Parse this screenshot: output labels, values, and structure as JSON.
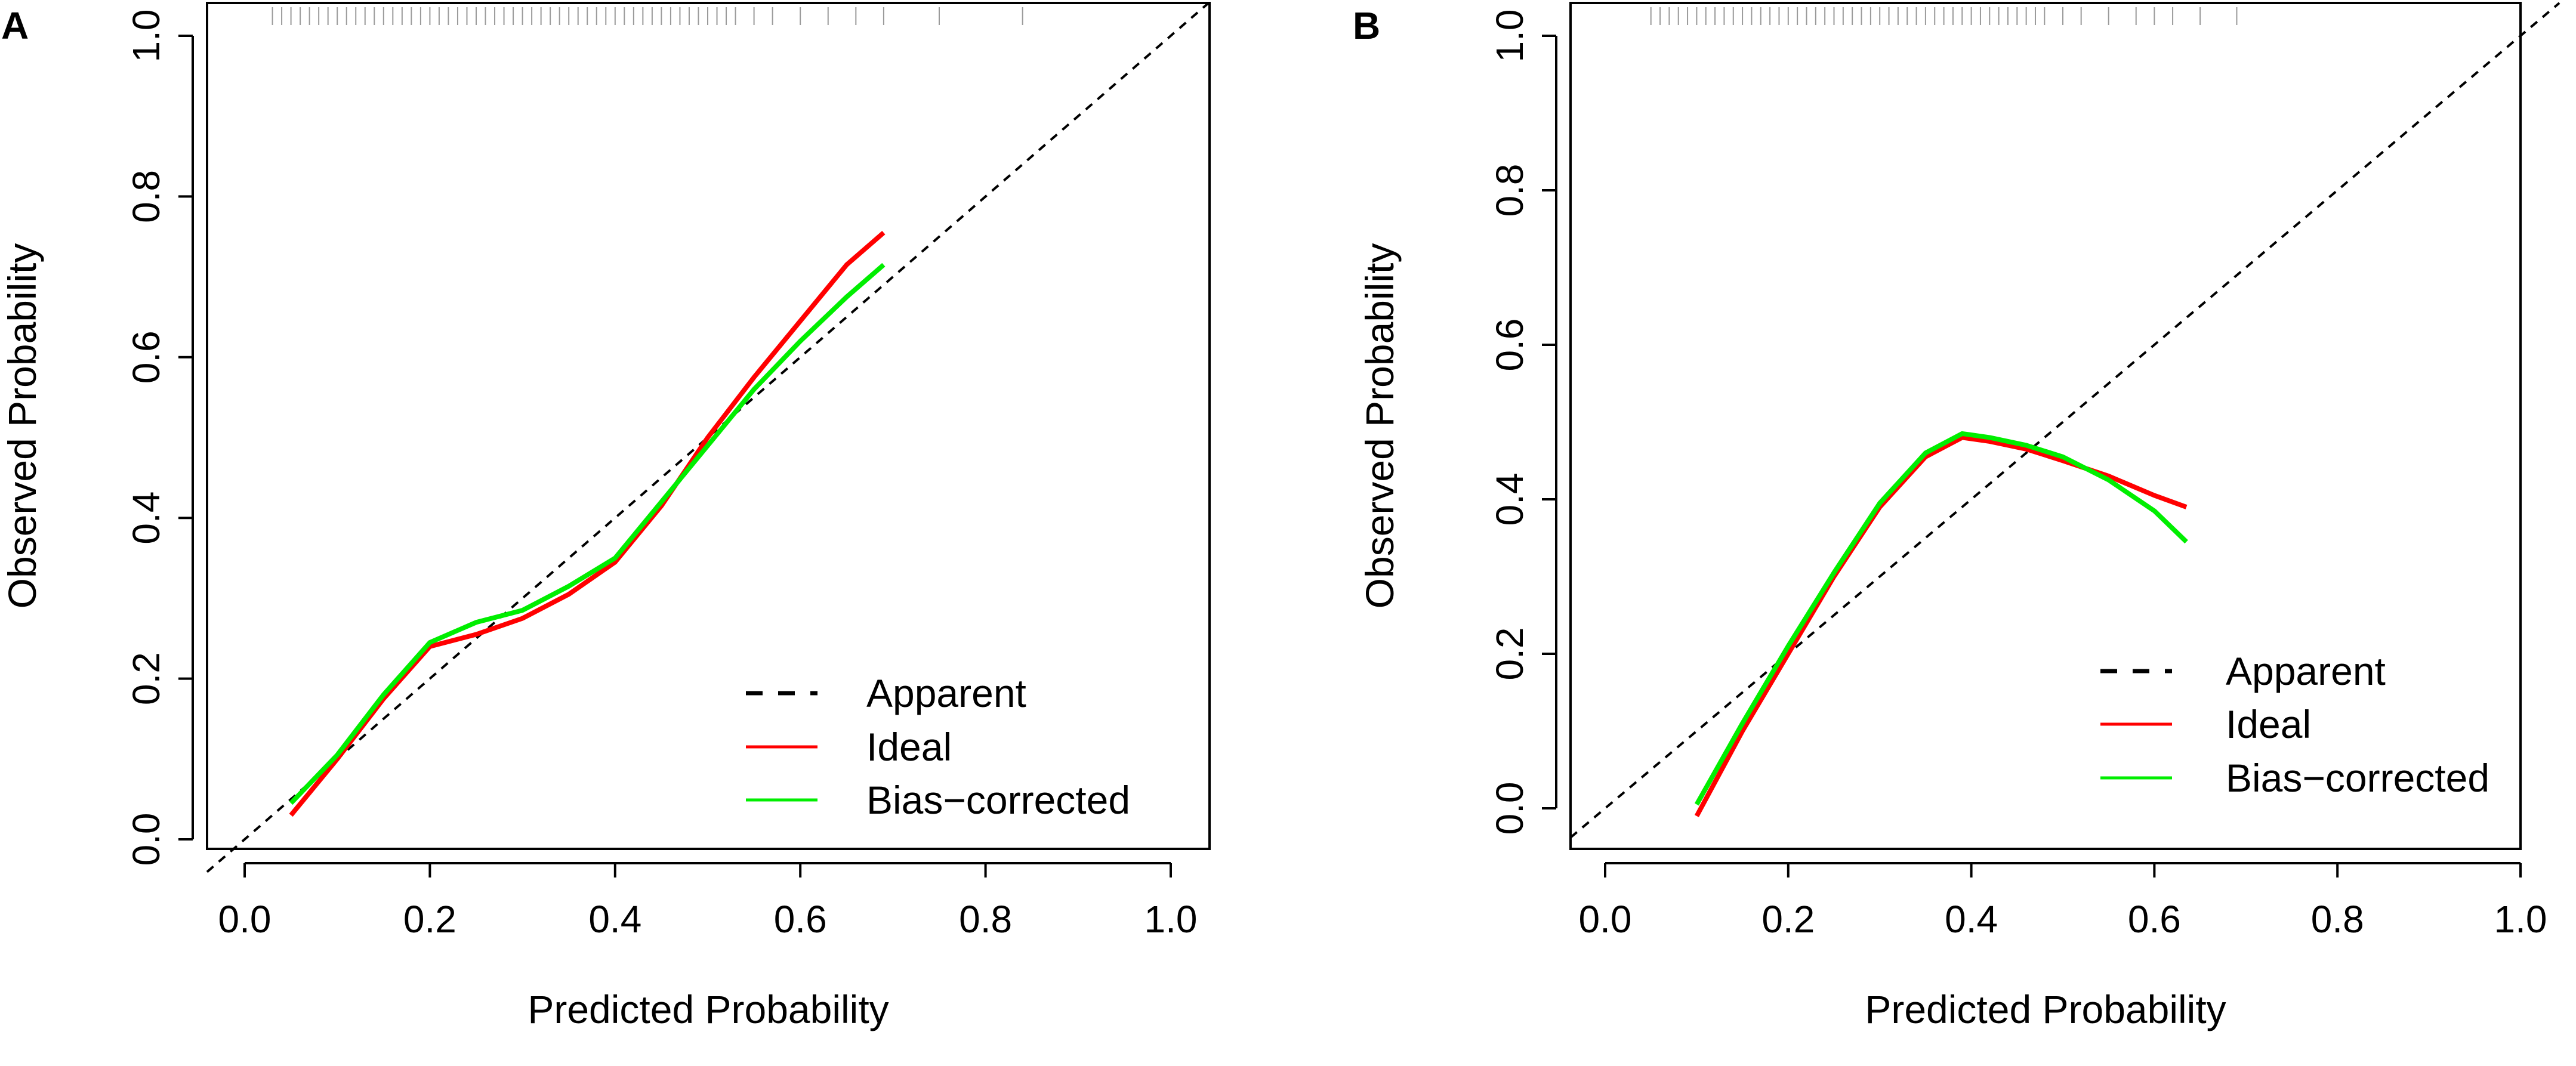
{
  "figure": {
    "legend_position": "bottom-right"
  },
  "chart_data": [
    {
      "panel": "A",
      "type": "line",
      "xlabel": "Predicted Probability",
      "ylabel": "Observed Probability",
      "xlim": [
        0,
        1
      ],
      "ylim": [
        0,
        1
      ],
      "xticks": [
        "0.0",
        "0.2",
        "0.4",
        "0.6",
        "0.8",
        "1.0"
      ],
      "yticks": [
        "0.0",
        "0.2",
        "0.4",
        "0.6",
        "0.8",
        "1.0"
      ],
      "legend": [
        "Apparent",
        "Ideal",
        "Bias−corrected"
      ],
      "series": [
        {
          "name": "Apparent",
          "style": "dashed",
          "color": "#000000",
          "x": [
            0,
            1
          ],
          "y": [
            0,
            1
          ]
        },
        {
          "name": "Ideal",
          "style": "solid",
          "color": "#ff0000",
          "x": [
            0.05,
            0.1,
            0.15,
            0.2,
            0.25,
            0.3,
            0.35,
            0.4,
            0.45,
            0.5,
            0.55,
            0.6,
            0.65,
            0.69
          ],
          "y": [
            0.03,
            0.1,
            0.175,
            0.24,
            0.255,
            0.275,
            0.305,
            0.345,
            0.415,
            0.5,
            0.575,
            0.645,
            0.715,
            0.755
          ]
        },
        {
          "name": "Bias−corrected",
          "style": "solid",
          "color": "#00ee00",
          "x": [
            0.05,
            0.1,
            0.15,
            0.2,
            0.25,
            0.3,
            0.35,
            0.4,
            0.45,
            0.5,
            0.55,
            0.6,
            0.65,
            0.69
          ],
          "y": [
            0.045,
            0.105,
            0.18,
            0.245,
            0.27,
            0.285,
            0.315,
            0.35,
            0.42,
            0.49,
            0.56,
            0.62,
            0.675,
            0.715
          ]
        }
      ],
      "rug_x": [
        0.03,
        0.04,
        0.05,
        0.06,
        0.07,
        0.08,
        0.09,
        0.1,
        0.11,
        0.12,
        0.13,
        0.14,
        0.15,
        0.16,
        0.17,
        0.18,
        0.19,
        0.2,
        0.21,
        0.22,
        0.23,
        0.24,
        0.25,
        0.26,
        0.27,
        0.28,
        0.29,
        0.3,
        0.31,
        0.32,
        0.33,
        0.34,
        0.35,
        0.36,
        0.37,
        0.38,
        0.39,
        0.4,
        0.41,
        0.42,
        0.43,
        0.44,
        0.45,
        0.46,
        0.47,
        0.48,
        0.49,
        0.5,
        0.51,
        0.52,
        0.53,
        0.55,
        0.57,
        0.6,
        0.63,
        0.66,
        0.69,
        0.75,
        0.84
      ]
    },
    {
      "panel": "B",
      "type": "line",
      "xlabel": "Predicted Probability",
      "ylabel": "Observed Probability",
      "xlim": [
        0,
        1
      ],
      "ylim": [
        0,
        1
      ],
      "xticks": [
        "0.0",
        "0.2",
        "0.4",
        "0.6",
        "0.8",
        "1.0"
      ],
      "yticks": [
        "0.0",
        "0.2",
        "0.4",
        "0.6",
        "0.8",
        "1.0"
      ],
      "legend": [
        "Apparent",
        "Ideal",
        "Bias−corrected"
      ],
      "series": [
        {
          "name": "Apparent",
          "style": "dashed",
          "color": "#000000",
          "x": [
            0,
            1
          ],
          "y": [
            0,
            1
          ]
        },
        {
          "name": "Ideal",
          "style": "solid",
          "color": "#ff0000",
          "x": [
            0.1,
            0.15,
            0.2,
            0.25,
            0.3,
            0.35,
            0.39,
            0.42,
            0.46,
            0.5,
            0.55,
            0.6,
            0.635
          ],
          "y": [
            -0.01,
            0.1,
            0.2,
            0.3,
            0.39,
            0.455,
            0.48,
            0.475,
            0.465,
            0.45,
            0.43,
            0.405,
            0.39
          ]
        },
        {
          "name": "Bias−corrected",
          "style": "solid",
          "color": "#00ee00",
          "x": [
            0.1,
            0.15,
            0.2,
            0.25,
            0.3,
            0.35,
            0.39,
            0.42,
            0.46,
            0.5,
            0.55,
            0.6,
            0.635
          ],
          "y": [
            0.005,
            0.11,
            0.21,
            0.305,
            0.395,
            0.46,
            0.485,
            0.48,
            0.47,
            0.455,
            0.425,
            0.385,
            0.345
          ]
        }
      ],
      "rug_x": [
        0.05,
        0.06,
        0.07,
        0.08,
        0.09,
        0.1,
        0.11,
        0.12,
        0.13,
        0.14,
        0.15,
        0.16,
        0.17,
        0.18,
        0.19,
        0.2,
        0.21,
        0.22,
        0.23,
        0.24,
        0.25,
        0.26,
        0.27,
        0.28,
        0.29,
        0.3,
        0.31,
        0.32,
        0.33,
        0.34,
        0.35,
        0.36,
        0.37,
        0.38,
        0.39,
        0.4,
        0.41,
        0.42,
        0.43,
        0.44,
        0.45,
        0.46,
        0.47,
        0.48,
        0.5,
        0.52,
        0.55,
        0.58,
        0.6,
        0.62,
        0.65,
        0.69
      ]
    }
  ]
}
